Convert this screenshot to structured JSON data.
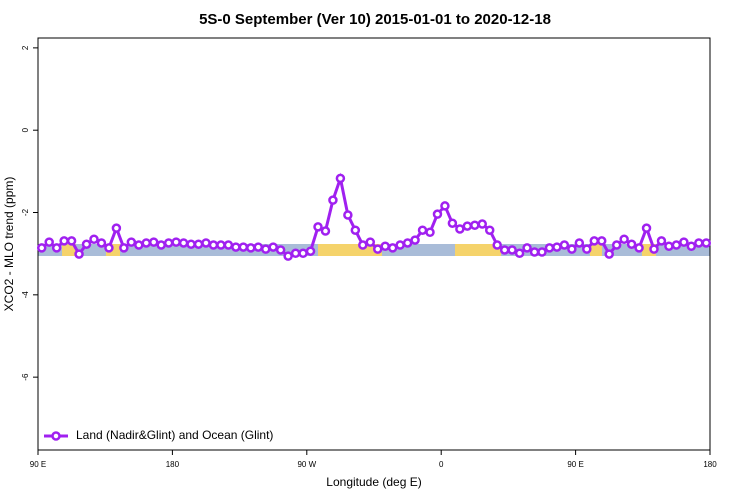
{
  "chart_data": {
    "type": "line",
    "title": "5S-0 September (Ver 10)   2015-01-01 to 2020-12-18",
    "x_label": "Longitude (deg E)",
    "y_label": "XCO2 - MLO trend (ppm)",
    "x": [
      -267.5,
      -262.5,
      -257.5,
      -252.5,
      -247.5,
      -242.5,
      -237.5,
      -232.5,
      -227.5,
      -222.5,
      -217.5,
      -212.5,
      -207.5,
      -202.5,
      -197.5,
      -192.5,
      -187.5,
      -182.5,
      -177.5,
      -172.5,
      -167.5,
      -162.5,
      -157.5,
      -152.5,
      -147.5,
      -142.5,
      -137.5,
      -132.5,
      -127.5,
      -122.5,
      -117.5,
      -112.5,
      -107.5,
      -102.5,
      -97.5,
      -92.5,
      -87.5,
      -82.5,
      -77.5,
      -72.5,
      -67.5,
      -62.5,
      -57.5,
      -52.5,
      -47.5,
      -42.5,
      -37.5,
      -32.5,
      -27.5,
      -22.5,
      -17.5,
      -12.5,
      -7.5,
      -2.5,
      2.5,
      7.5,
      12.5,
      17.5,
      22.5,
      27.5,
      32.5,
      37.5,
      42.5,
      47.5,
      52.5,
      57.5,
      62.5,
      67.5,
      72.5,
      77.5,
      82.5,
      87.5,
      92.5,
      97.5,
      102.5,
      107.5,
      112.5,
      117.5,
      122.5,
      127.5,
      132.5,
      137.5,
      142.5,
      147.5,
      152.5,
      157.5,
      162.5,
      167.5,
      172.5,
      177.5
    ],
    "series": [
      {
        "name": "Land (Nadir&Glint) and Ocean (Glint)",
        "color": "#a020f0",
        "values": [
          -2.86,
          -2.72,
          -2.86,
          -2.69,
          -2.69,
          -3.01,
          -2.77,
          -2.65,
          -2.74,
          -2.86,
          -2.38,
          -2.86,
          -2.72,
          -2.79,
          -2.74,
          -2.72,
          -2.79,
          -2.74,
          -2.72,
          -2.74,
          -2.77,
          -2.77,
          -2.74,
          -2.79,
          -2.79,
          -2.79,
          -2.84,
          -2.84,
          -2.86,
          -2.84,
          -2.89,
          -2.84,
          -2.91,
          -3.06,
          -2.99,
          -2.99,
          -2.94,
          -2.35,
          -2.45,
          -1.7,
          -1.17,
          -2.06,
          -2.43,
          -2.79,
          -2.72,
          -2.89,
          -2.82,
          -2.86,
          -2.79,
          -2.74,
          -2.67,
          -2.43,
          -2.48,
          -2.04,
          -1.84,
          -2.26,
          -2.4,
          -2.33,
          -2.31,
          -2.28,
          -2.43,
          -2.79,
          -2.91,
          -2.91,
          -2.99,
          -2.86,
          -2.96,
          -2.96,
          -2.86,
          -2.84,
          -2.79,
          -2.89,
          -2.74,
          -2.89,
          -2.69,
          -2.69,
          -3.01,
          -2.79,
          -2.65,
          -2.77,
          -2.86,
          -2.38,
          -2.89,
          -2.69,
          -2.82,
          -2.79,
          -2.72,
          -2.82,
          -2.74,
          -2.74
        ]
      }
    ],
    "xlim": [
      -270,
      180
    ],
    "xticks": [
      {
        "value": -270,
        "label": "90 E"
      },
      {
        "value": -180,
        "label": "180"
      },
      {
        "value": -90,
        "label": "90 W"
      },
      0,
      {
        "value": 90,
        "label": "90 E"
      },
      180
    ],
    "ylim": [
      -7.77,
      2.24
    ],
    "yticks": [
      -6,
      -4,
      -2,
      0,
      2
    ],
    "legend": "bottom-left"
  }
}
